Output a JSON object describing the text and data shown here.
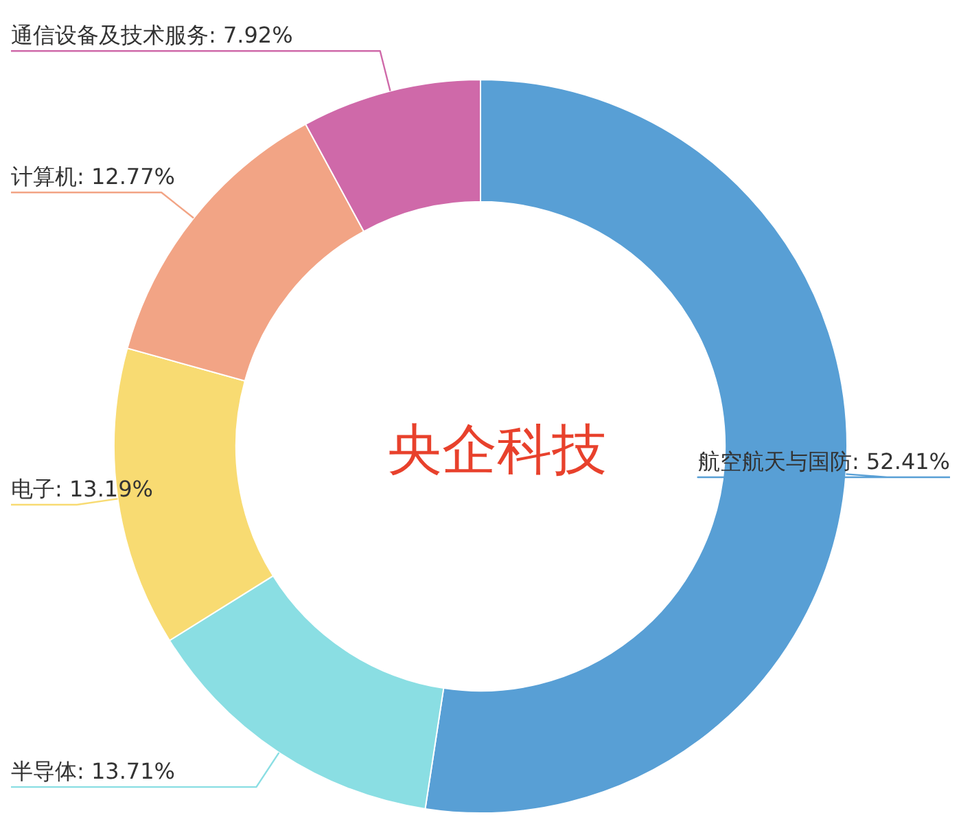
{
  "chart_data": {
    "type": "donut",
    "title": "央企科技",
    "categories": [
      "航空航天与国防",
      "半导体",
      "电子",
      "计算机",
      "通信设备及技术服务"
    ],
    "values": [
      52.41,
      13.71,
      13.19,
      12.77,
      7.92
    ],
    "colors": [
      "#589fd5",
      "#8adee3",
      "#f8db72",
      "#f2a485",
      "#cf69a9"
    ],
    "value_labels": [
      "52.41%",
      "13.71%",
      "13.19%",
      "12.77%",
      "7.92%"
    ]
  }
}
